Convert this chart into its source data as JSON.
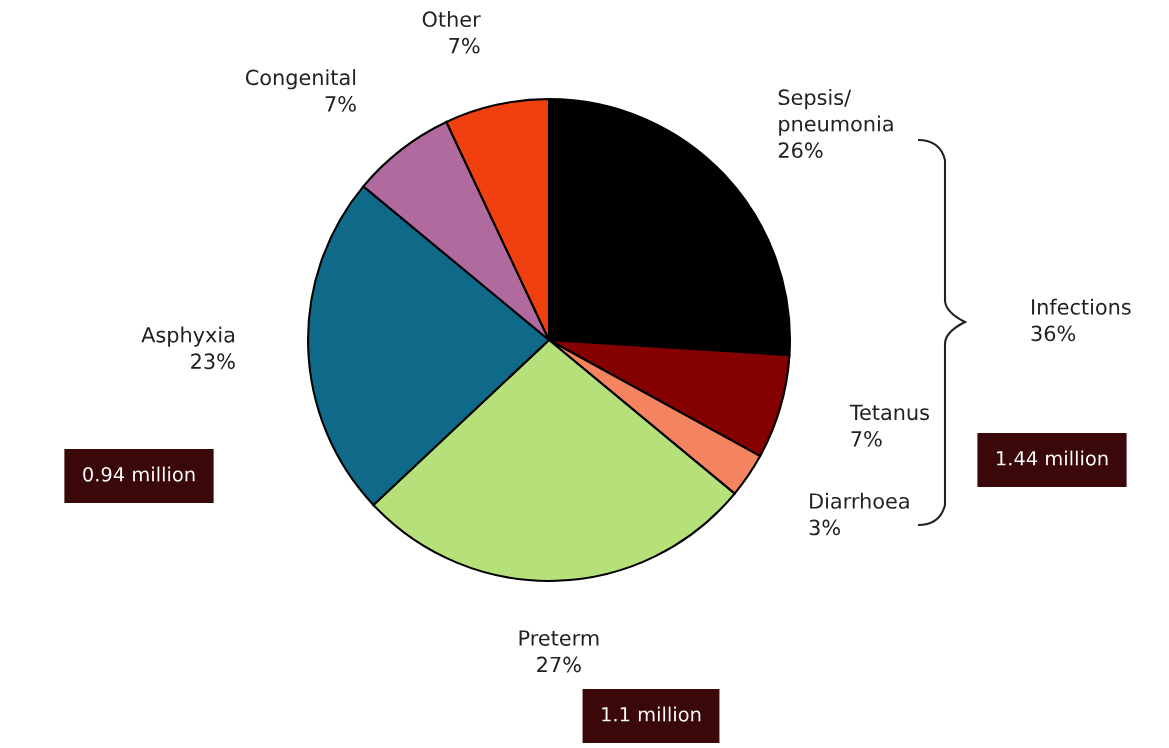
{
  "chart_data": {
    "type": "pie",
    "categories": [
      "Sepsis/\npneumonia",
      "Tetanus",
      "Diarrhoea",
      "Preterm",
      "Asphyxia",
      "Congenital",
      "Other"
    ],
    "values": [
      26,
      7,
      3,
      27,
      23,
      7,
      7
    ],
    "value_labels": [
      "26%",
      "7%",
      "3%",
      "27%",
      "23%",
      "7%",
      "7%"
    ],
    "colors": [
      "#000000",
      "#850000",
      "#f4845f",
      "#b5e07a",
      "#0f6a8a",
      "#b06a9e",
      "#f04010"
    ],
    "annotations": [
      "Infections\n36%",
      "0.94 million",
      "1.44 million",
      "1.1 million"
    ],
    "legend": false
  }
}
